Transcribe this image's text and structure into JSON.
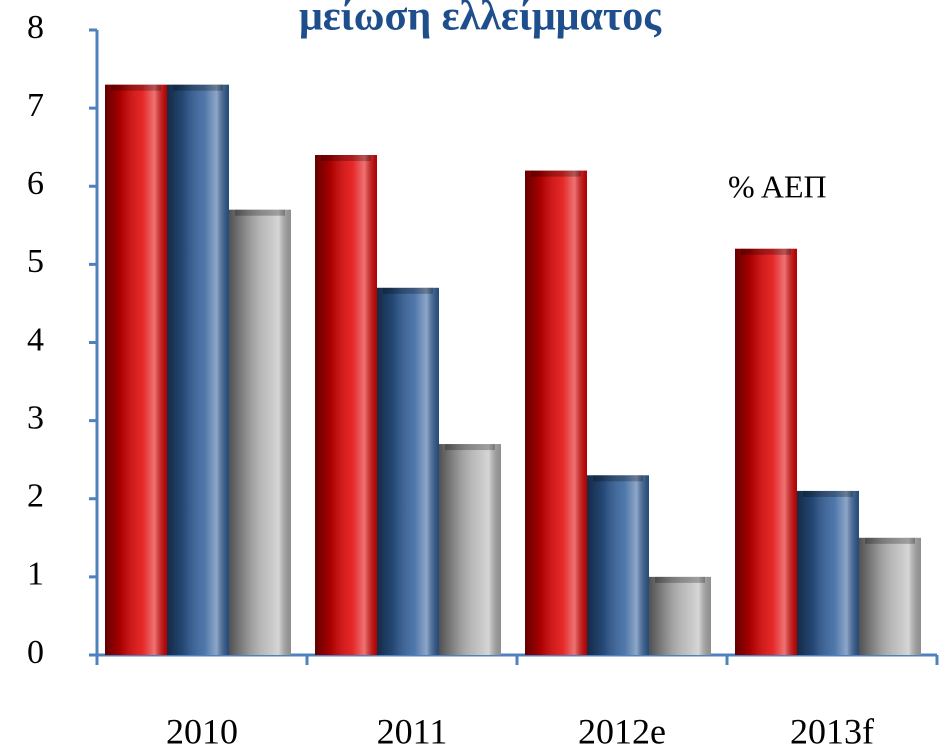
{
  "chart_data": {
    "type": "bar",
    "title": "μείωση ελλείμματος",
    "annotation": "% ΑΕΠ",
    "categories": [
      "2010",
      "2011",
      "2012e",
      "2013f"
    ],
    "series": [
      {
        "color": "#e00000",
        "values": [
          7.3,
          6.4,
          6.2,
          5.2
        ]
      },
      {
        "color": "#2f5e9a",
        "values": [
          7.3,
          4.7,
          2.3,
          2.1
        ]
      },
      {
        "color": "#b4b4b4",
        "values": [
          5.7,
          2.7,
          1.0,
          1.5
        ]
      }
    ],
    "ylim": [
      0,
      8
    ],
    "yticks": [
      0,
      1,
      2,
      3,
      4,
      5,
      6,
      7,
      8
    ],
    "grid": false
  }
}
